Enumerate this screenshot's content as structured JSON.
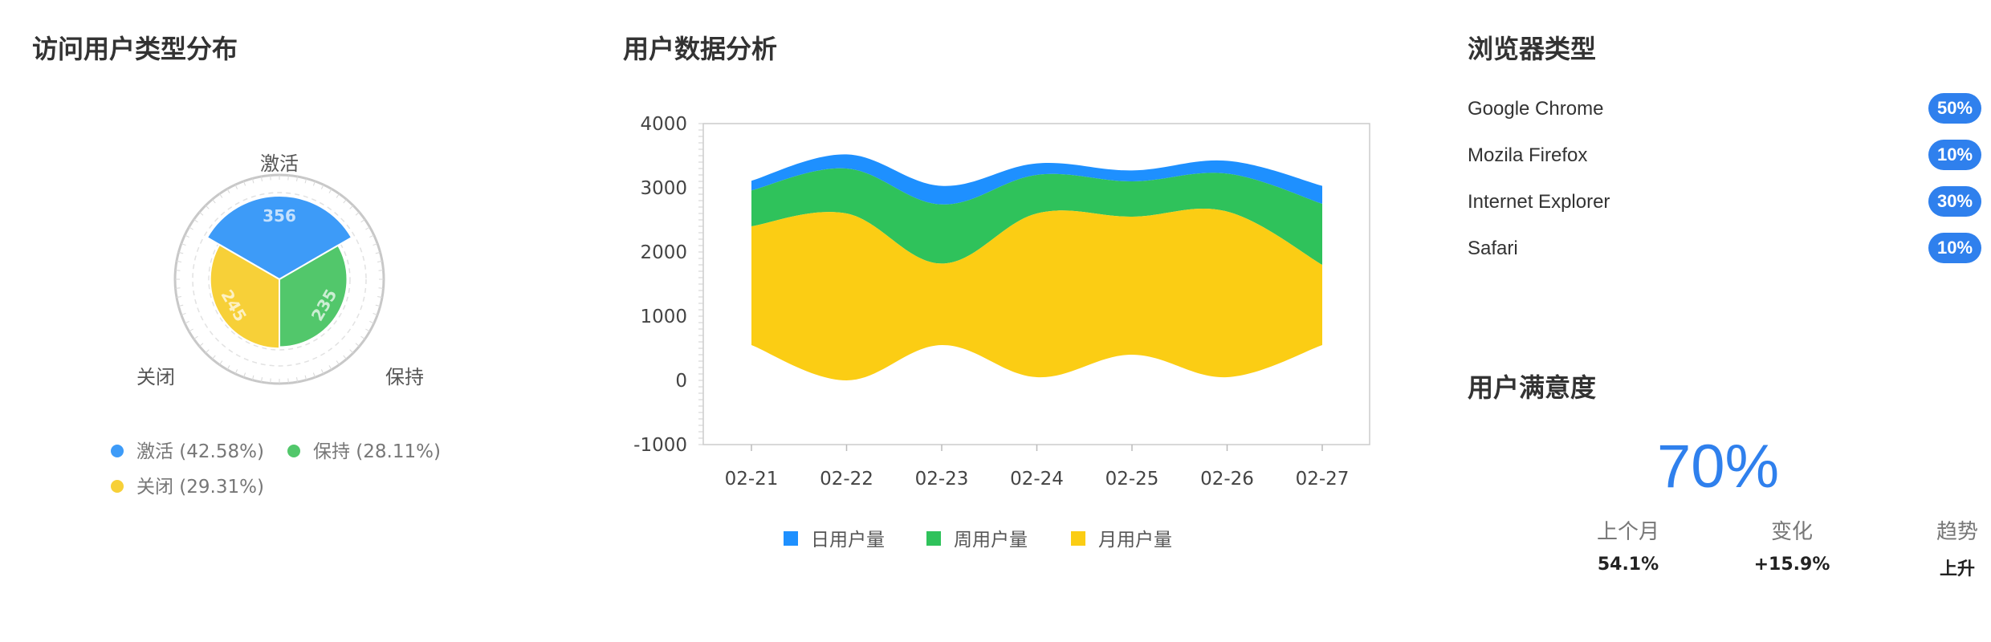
{
  "user_type": {
    "title": "访问用户类型分布",
    "chart_data": {
      "type": "pie",
      "variant": "nightingale-rose",
      "categories": [
        "激活",
        "保持",
        "关闭"
      ],
      "values": [
        356,
        235,
        245
      ],
      "colors": [
        "#3d9bf8",
        "#52c76b",
        "#f7d038"
      ],
      "legend": [
        {
          "label": "激活 (42.58%)",
          "color": "#3d9bf8"
        },
        {
          "label": "保持 (28.11%)",
          "color": "#52c76b"
        },
        {
          "label": "关闭 (29.31%)",
          "color": "#f7d038"
        }
      ]
    }
  },
  "user_data": {
    "title": "用户数据分析",
    "chart_data": {
      "type": "area",
      "variant": "streamgraph",
      "categories": [
        "02-21",
        "02-22",
        "02-23",
        "02-24",
        "02-25",
        "02-26",
        "02-27"
      ],
      "ylim": [
        -1000,
        4000
      ],
      "yticks": [
        4000,
        3000,
        2000,
        1000,
        0,
        -1000
      ],
      "series": [
        {
          "name": "月用户量",
          "color": "#fbcd14",
          "values": [
            1850,
            2600,
            1270,
            2550,
            2150,
            2580,
            1250
          ]
        },
        {
          "name": "周用户量",
          "color": "#2fc25b",
          "values": [
            560,
            700,
            920,
            600,
            550,
            590,
            950
          ]
        },
        {
          "name": "日用户量",
          "color": "#1e90ff",
          "values": [
            150,
            220,
            290,
            180,
            170,
            200,
            280
          ]
        }
      ],
      "baseline": [
        550,
        0,
        550,
        50,
        400,
        50,
        550
      ],
      "legend": [
        "日用户量",
        "周用户量",
        "月用户量"
      ]
    }
  },
  "browser": {
    "title": "浏览器类型",
    "items": [
      {
        "name": "Google Chrome",
        "percent": "50%"
      },
      {
        "name": "Mozila Firefox",
        "percent": "10%"
      },
      {
        "name": "Internet Explorer",
        "percent": "30%"
      },
      {
        "name": "Safari",
        "percent": "10%"
      }
    ]
  },
  "satisfaction": {
    "title": "用户满意度",
    "value": "70%",
    "stats": [
      {
        "label": "上个月",
        "value": "54.1%"
      },
      {
        "label": "变化",
        "value": "+15.9%"
      },
      {
        "label": "趋势",
        "value": "上升"
      }
    ]
  }
}
